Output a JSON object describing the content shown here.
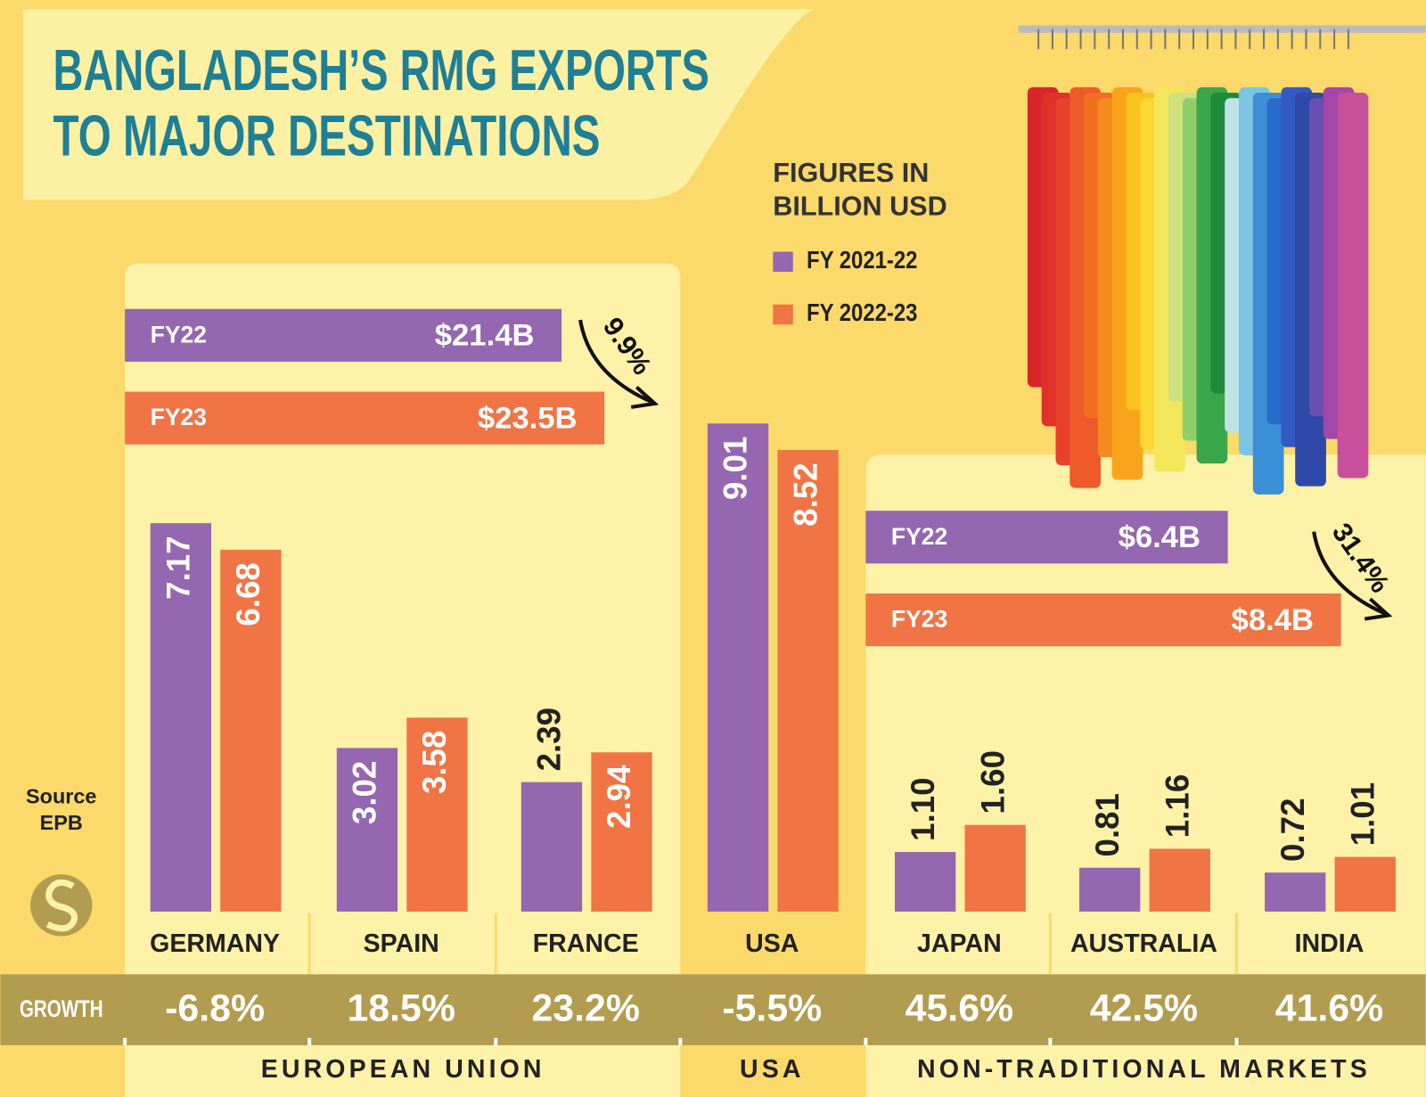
{
  "chart_data": {
    "type": "bar",
    "title": [
      "BANGLADESH’S RMG EXPORTS",
      "TO MAJOR DESTINATIONS"
    ],
    "note": [
      "FIGURES IN",
      "BILLION USD"
    ],
    "categories": [
      "GERMANY",
      "SPAIN",
      "FRANCE",
      "USA",
      "JAPAN",
      "AUSTRALIA",
      "INDIA"
    ],
    "series": [
      {
        "name": "FY 2021-22",
        "color": "#9467b0",
        "values": [
          7.17,
          3.02,
          2.39,
          9.01,
          1.1,
          0.81,
          0.72
        ],
        "value_labels": [
          "7.17",
          "3.02",
          "2.39",
          "9.01",
          "1.10",
          "0.81",
          "0.72"
        ]
      },
      {
        "name": "FY 2022-23",
        "color": "#f07444",
        "values": [
          6.68,
          3.58,
          2.94,
          8.52,
          1.6,
          1.16,
          1.01
        ],
        "value_labels": [
          "6.68",
          "3.58",
          "2.94",
          "8.52",
          "1.60",
          "1.16",
          "1.01"
        ]
      }
    ],
    "totals": [
      {
        "labels": [
          "FY22",
          "FY23"
        ],
        "values": [
          21.4,
          23.5
        ],
        "value_labels": [
          "$21.4B",
          "$23.5B"
        ],
        "change": "9.9%"
      },
      {
        "labels": [
          "FY22",
          "FY23"
        ],
        "values": [
          6.4,
          8.4
        ],
        "value_labels": [
          "$6.4B",
          "$8.4B"
        ],
        "change": "31.4%"
      }
    ],
    "growth_label": "GROWTH",
    "growth": [
      "-6.8%",
      "18.5%",
      "23.2%",
      "-5.5%",
      "45.6%",
      "42.5%",
      "41.6%"
    ],
    "groups": [
      "EUROPEAN UNION",
      "USA",
      "NON-TRADITIONAL MARKETS"
    ],
    "source_label": "Source",
    "source": "EPB"
  }
}
